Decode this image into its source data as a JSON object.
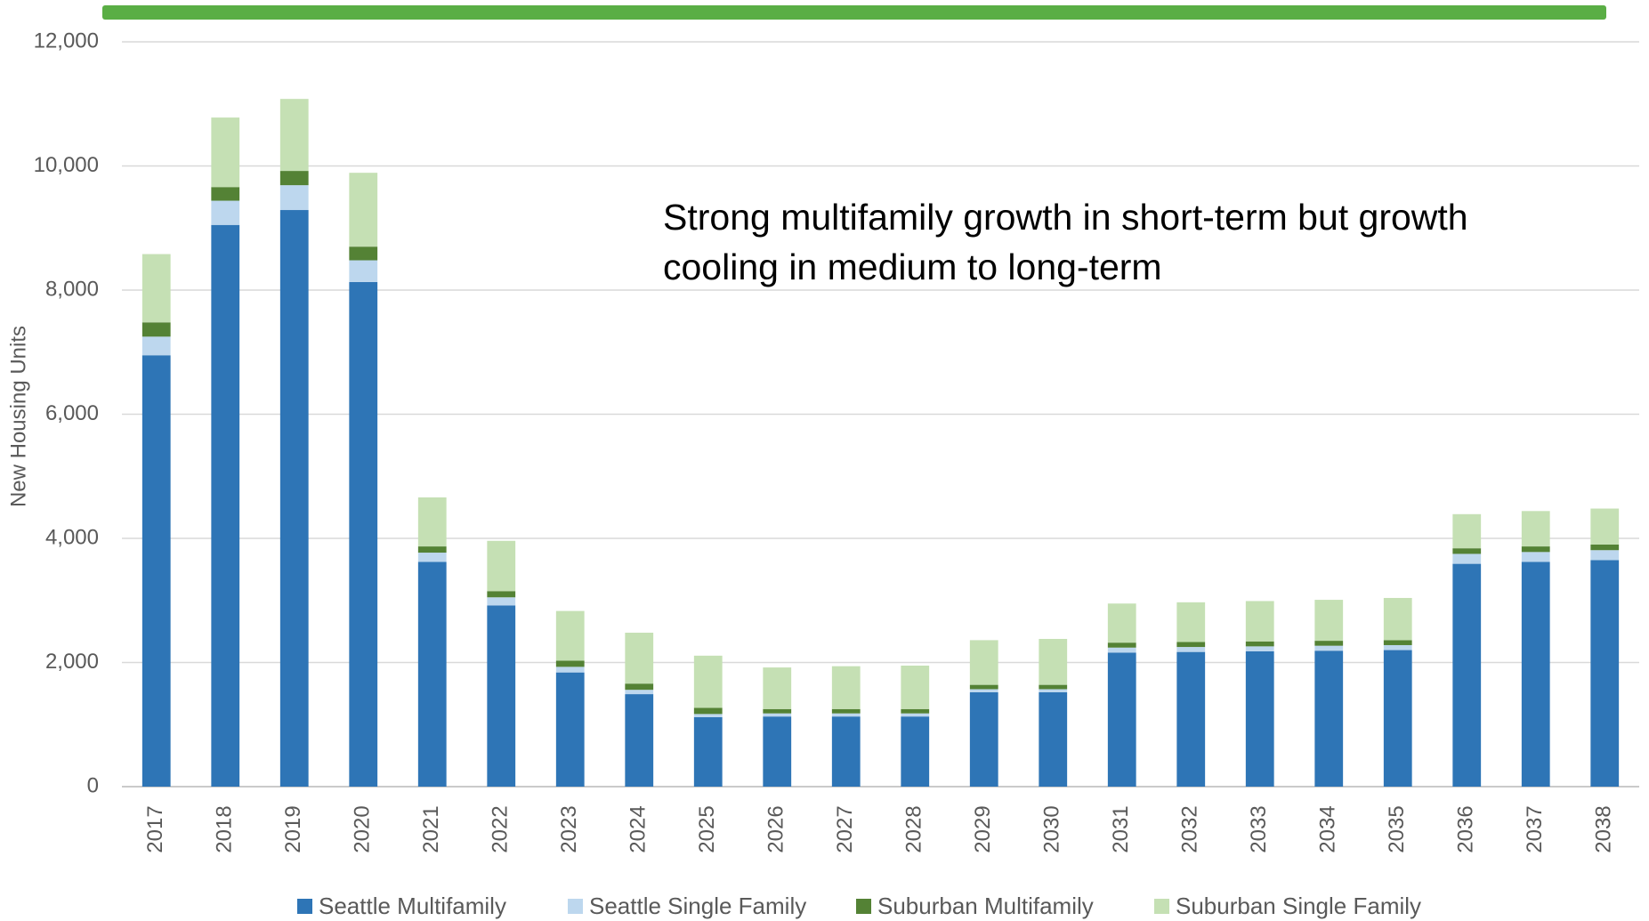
{
  "chart_data": {
    "type": "stacked_bar",
    "annotation": "Strong multifamily growth in short-term but growth cooling in medium to long-term",
    "y_label": "New Housing Units",
    "categories": [
      "2017",
      "2018",
      "2019",
      "2020",
      "2021",
      "2022",
      "2023",
      "2024",
      "2025",
      "2026",
      "2027",
      "2028",
      "2029",
      "2030",
      "2031",
      "2032",
      "2033",
      "2034",
      "2035",
      "2036",
      "2037",
      "2038"
    ],
    "series": [
      {
        "name": "Seattle Multifamily",
        "color": "#2e75b6",
        "values": [
          6950,
          9050,
          9290,
          8130,
          3620,
          2920,
          1840,
          1490,
          1120,
          1130,
          1130,
          1130,
          1520,
          1520,
          2160,
          2170,
          2180,
          2190,
          2200,
          3590,
          3620,
          3650
        ]
      },
      {
        "name": "Seattle Single Family",
        "color": "#bdd7ee",
        "values": [
          300,
          390,
          400,
          350,
          150,
          130,
          90,
          70,
          50,
          50,
          50,
          50,
          50,
          50,
          80,
          80,
          80,
          80,
          80,
          160,
          160,
          160
        ]
      },
      {
        "name": "Suburban Multifamily",
        "color": "#548235",
        "values": [
          230,
          220,
          230,
          220,
          100,
          100,
          100,
          100,
          100,
          70,
          70,
          70,
          70,
          70,
          80,
          80,
          80,
          80,
          80,
          90,
          90,
          90
        ]
      },
      {
        "name": "Suburban Single Family",
        "color": "#c5e0b4",
        "values": [
          1100,
          1120,
          1160,
          1190,
          790,
          810,
          800,
          820,
          840,
          670,
          690,
          700,
          720,
          740,
          630,
          640,
          650,
          660,
          680,
          550,
          570,
          580
        ]
      }
    ],
    "ylim": [
      0,
      12000
    ],
    "yticks": [
      0,
      {
        "value": 2000,
        "label": "2,000"
      },
      {
        "value": 4000,
        "label": "4,000"
      },
      {
        "value": 6000,
        "label": "6,000"
      },
      {
        "value": 8000,
        "label": "8,000"
      },
      {
        "value": 10000,
        "label": "10,000"
      },
      {
        "value": 12000,
        "label": "12,000"
      }
    ],
    "grid": true
  }
}
